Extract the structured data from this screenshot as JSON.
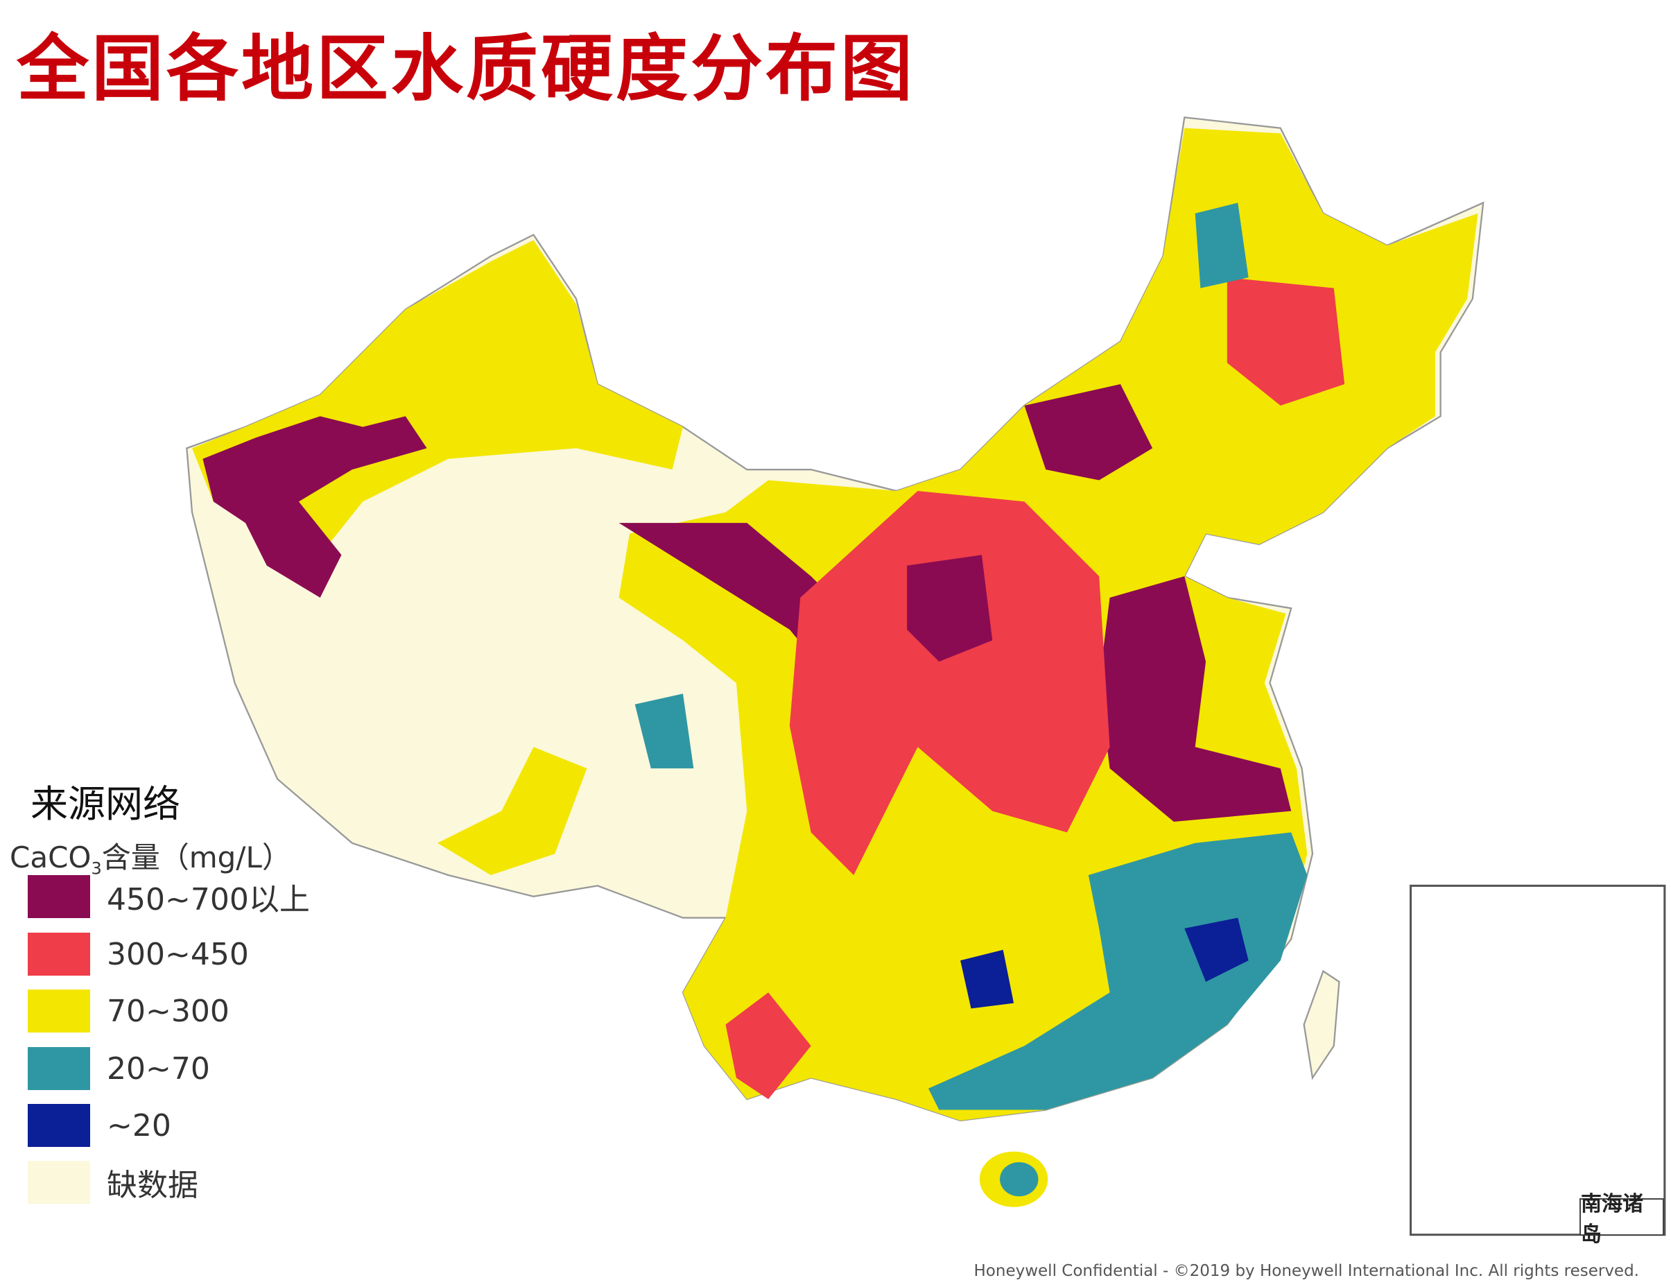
{
  "title": "全国各地区水质硬度分布图",
  "source": "来源网络",
  "legend": {
    "title_main": "CaCO",
    "title_sub": "3",
    "title_rest": "含量（mg/L）",
    "items": [
      {
        "label": "450~700以上",
        "color": "#8b0b52"
      },
      {
        "label": "300~450",
        "color": "#ef3d4a"
      },
      {
        "label": "70~300",
        "color": "#f3e600"
      },
      {
        "label": "20~70",
        "color": "#2f97a3"
      },
      {
        "label": "~20",
        "color": "#0b1f96"
      },
      {
        "label": "缺数据",
        "color": "#fbf8dc"
      }
    ]
  },
  "inset_label": "南海诸岛",
  "footer": "Honeywell Confidential - ©2019 by Honeywell International Inc. All rights reserved."
}
